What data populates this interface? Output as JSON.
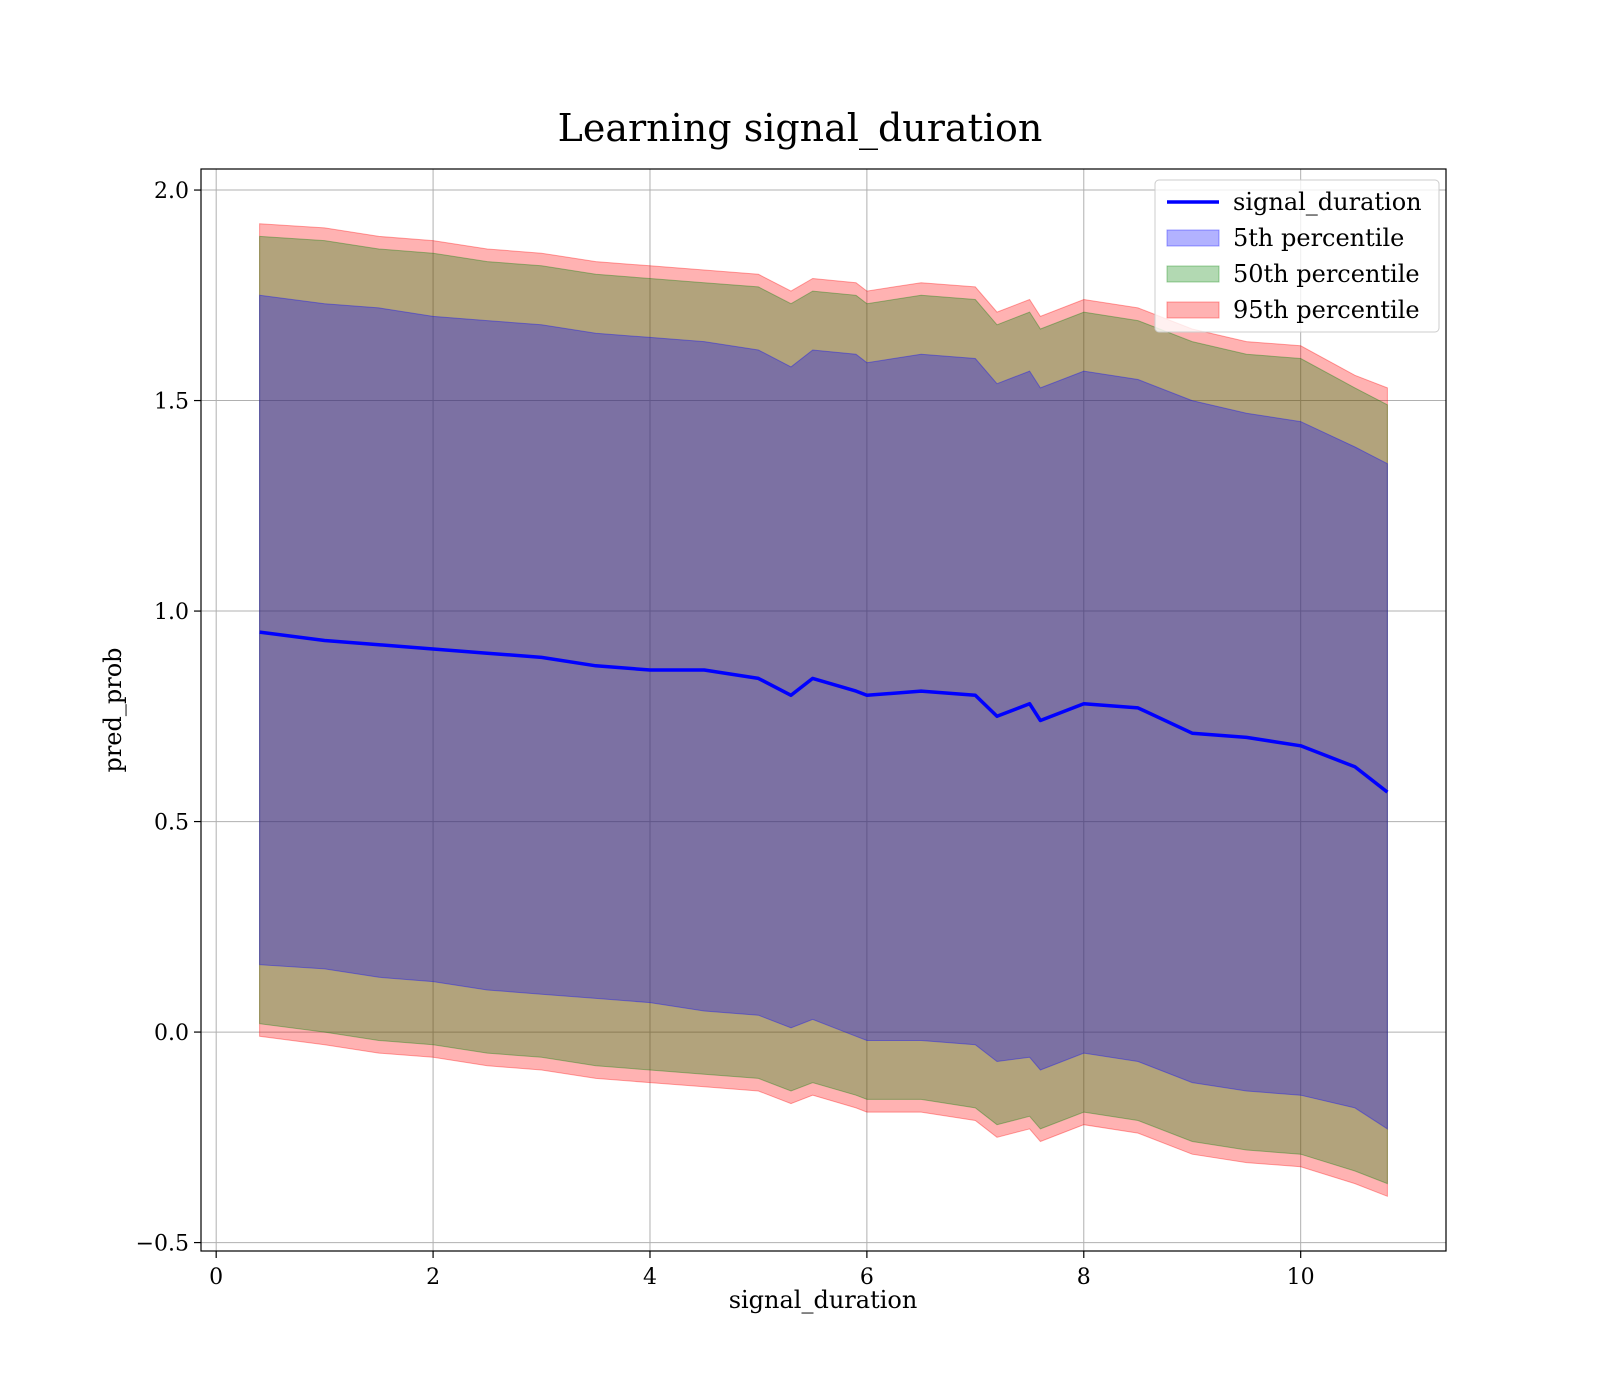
{
  "chart_data": {
    "type": "area",
    "title": "Learning signal_duration",
    "xlabel": "signal_duration",
    "ylabel": "pred_prob",
    "xlim": [
      -0.14,
      11.34
    ],
    "ylim": [
      -0.52,
      2.05
    ],
    "xticks": [
      0,
      2,
      4,
      6,
      8,
      10
    ],
    "yticks": [
      -0.5,
      0.0,
      0.5,
      1.0,
      1.5,
      2.0
    ],
    "xtick_labels": [
      "0",
      "2",
      "4",
      "6",
      "8",
      "10"
    ],
    "ytick_labels": [
      "−0.5",
      "0.0",
      "0.5",
      "1.0",
      "1.5",
      "2.0"
    ],
    "grid": true,
    "legend_position": "top-right",
    "legend": [
      "signal_duration",
      "5th percentile",
      "50th percentile",
      "95th percentile"
    ],
    "x": [
      0.4,
      1.0,
      1.5,
      2.0,
      2.5,
      3.0,
      3.5,
      4.0,
      4.5,
      5.0,
      5.3,
      5.5,
      5.9,
      6.0,
      6.5,
      7.0,
      7.2,
      7.5,
      7.6,
      8.0,
      8.5,
      9.0,
      9.5,
      10.0,
      10.5,
      10.8
    ],
    "series": [
      {
        "name": "signal_duration",
        "kind": "line",
        "color": "#0000ff",
        "values": [
          0.95,
          0.93,
          0.92,
          0.91,
          0.9,
          0.89,
          0.87,
          0.86,
          0.86,
          0.84,
          0.8,
          0.84,
          0.81,
          0.8,
          0.81,
          0.8,
          0.75,
          0.78,
          0.74,
          0.78,
          0.77,
          0.71,
          0.7,
          0.68,
          0.63,
          0.57
        ]
      },
      {
        "name": "5th percentile",
        "kind": "band",
        "color": "#0000ff",
        "lower": [
          0.16,
          0.15,
          0.13,
          0.12,
          0.1,
          0.09,
          0.08,
          0.07,
          0.05,
          0.04,
          0.01,
          0.03,
          -0.01,
          -0.02,
          -0.02,
          -0.03,
          -0.07,
          -0.06,
          -0.09,
          -0.05,
          -0.07,
          -0.12,
          -0.14,
          -0.15,
          -0.18,
          -0.23
        ],
        "upper": [
          1.75,
          1.73,
          1.72,
          1.7,
          1.69,
          1.68,
          1.66,
          1.65,
          1.64,
          1.62,
          1.58,
          1.62,
          1.61,
          1.59,
          1.61,
          1.6,
          1.54,
          1.57,
          1.53,
          1.57,
          1.55,
          1.5,
          1.47,
          1.45,
          1.39,
          1.35
        ]
      },
      {
        "name": "50th percentile",
        "kind": "band",
        "color": "#008000",
        "lower": [
          0.02,
          0.0,
          -0.02,
          -0.03,
          -0.05,
          -0.06,
          -0.08,
          -0.09,
          -0.1,
          -0.11,
          -0.14,
          -0.12,
          -0.15,
          -0.16,
          -0.16,
          -0.18,
          -0.22,
          -0.2,
          -0.23,
          -0.19,
          -0.21,
          -0.26,
          -0.28,
          -0.29,
          -0.33,
          -0.36
        ],
        "upper": [
          1.89,
          1.88,
          1.86,
          1.85,
          1.83,
          1.82,
          1.8,
          1.79,
          1.78,
          1.77,
          1.73,
          1.76,
          1.75,
          1.73,
          1.75,
          1.74,
          1.68,
          1.71,
          1.67,
          1.71,
          1.69,
          1.64,
          1.61,
          1.6,
          1.53,
          1.49
        ]
      },
      {
        "name": "95th percentile",
        "kind": "band",
        "color": "#ff0000",
        "lower": [
          -0.01,
          -0.03,
          -0.05,
          -0.06,
          -0.08,
          -0.09,
          -0.11,
          -0.12,
          -0.13,
          -0.14,
          -0.17,
          -0.15,
          -0.18,
          -0.19,
          -0.19,
          -0.21,
          -0.25,
          -0.23,
          -0.26,
          -0.22,
          -0.24,
          -0.29,
          -0.31,
          -0.32,
          -0.36,
          -0.39
        ],
        "upper": [
          1.92,
          1.91,
          1.89,
          1.88,
          1.86,
          1.85,
          1.83,
          1.82,
          1.81,
          1.8,
          1.76,
          1.79,
          1.78,
          1.76,
          1.78,
          1.77,
          1.71,
          1.74,
          1.7,
          1.74,
          1.72,
          1.67,
          1.64,
          1.63,
          1.56,
          1.53
        ]
      }
    ]
  }
}
